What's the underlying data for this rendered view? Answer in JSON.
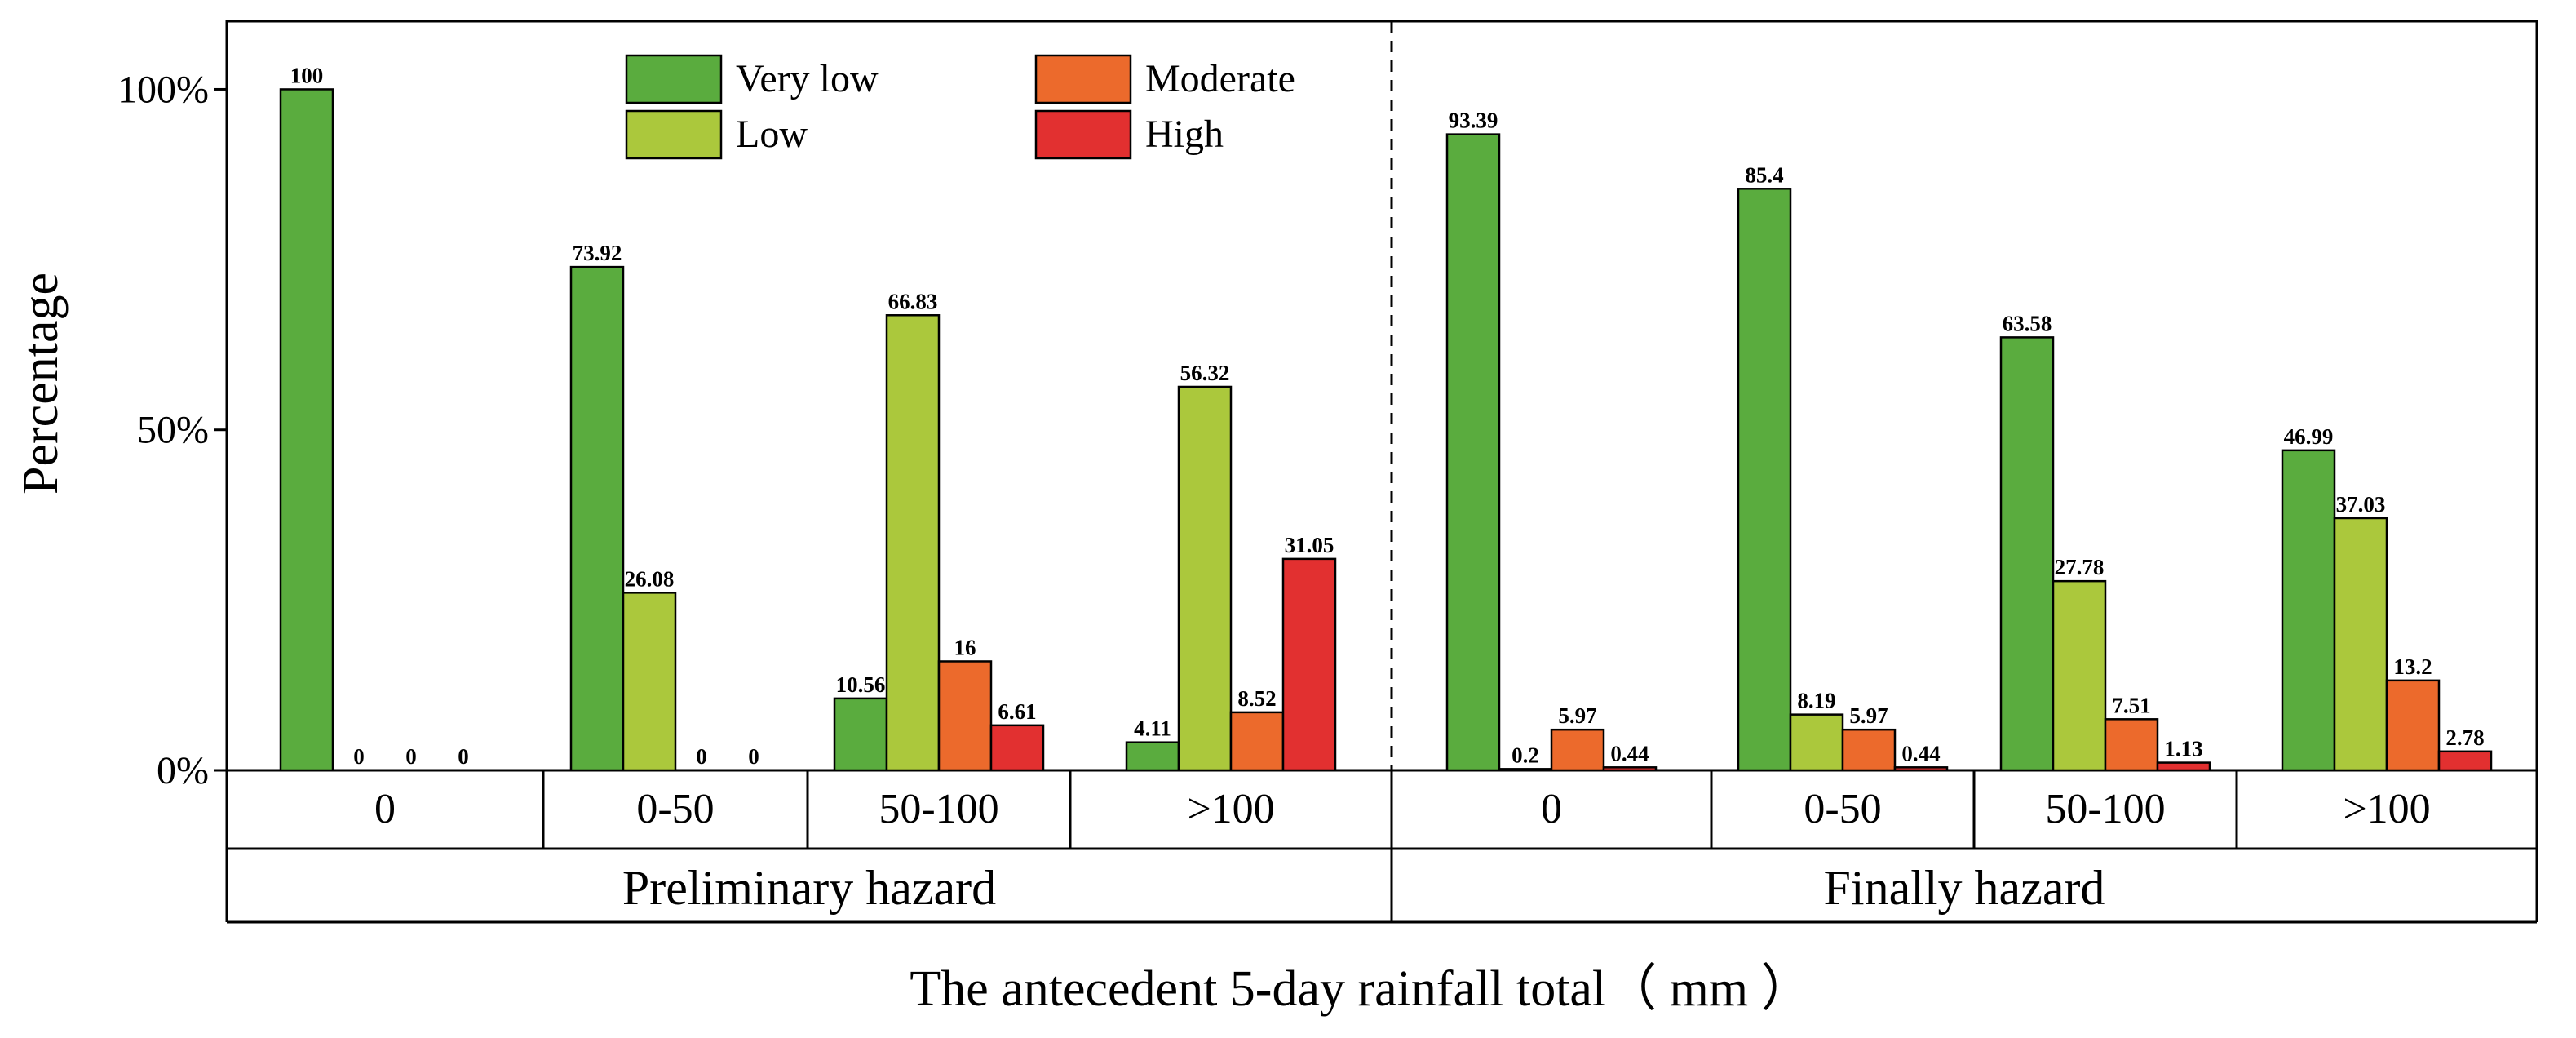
{
  "chart_data": {
    "type": "bar",
    "ylabel": "Percentage",
    "xlabel": "The antecedent 5-day rainfall total（ mm ）",
    "ylim": [
      0,
      110
    ],
    "yticks": [
      {
        "value": 0,
        "label": "0%"
      },
      {
        "value": 50,
        "label": "50%"
      },
      {
        "value": 100,
        "label": "100%"
      }
    ],
    "legend_position": "top-center",
    "series": [
      {
        "name": "Very low",
        "color": "#5aac3e"
      },
      {
        "name": "Low",
        "color": "#abc83c"
      },
      {
        "name": "Moderate",
        "color": "#ec6a2c"
      },
      {
        "name": "High",
        "color": "#e23030"
      }
    ],
    "groups": [
      {
        "label": "Preliminary hazard",
        "categories": [
          {
            "label": "0",
            "values": [
              100,
              0,
              0,
              0
            ],
            "labels": [
              "100",
              "0",
              "0",
              "0"
            ]
          },
          {
            "label": "0-50",
            "values": [
              73.92,
              26.08,
              0,
              0
            ],
            "labels": [
              "73.92",
              "26.08",
              "0",
              "0"
            ]
          },
          {
            "label": "50-100",
            "values": [
              10.56,
              66.83,
              16,
              6.61
            ],
            "labels": [
              "10.56",
              "66.83",
              "16",
              "6.61"
            ]
          },
          {
            "label": ">100",
            "values": [
              4.11,
              56.32,
              8.52,
              31.05
            ],
            "labels": [
              "4.11",
              "56.32",
              "8.52",
              "31.05"
            ]
          }
        ]
      },
      {
        "label": "Finally hazard",
        "categories": [
          {
            "label": "0",
            "values": [
              93.39,
              0.2,
              5.97,
              0.44
            ],
            "labels": [
              "93.39",
              "0.2",
              "5.97",
              "0.44"
            ]
          },
          {
            "label": "0-50",
            "values": [
              85.4,
              8.19,
              5.97,
              0.44
            ],
            "labels": [
              "85.4",
              "8.19",
              "5.97",
              "0.44"
            ]
          },
          {
            "label": "50-100",
            "values": [
              63.58,
              27.78,
              7.51,
              1.13
            ],
            "labels": [
              "63.58",
              "27.78",
              "7.51",
              "1.13"
            ]
          },
          {
            "label": ">100",
            "values": [
              46.99,
              37.03,
              13.2,
              2.78
            ],
            "labels": [
              "46.99",
              "37.03",
              "13.2",
              "2.78"
            ]
          }
        ]
      }
    ]
  }
}
